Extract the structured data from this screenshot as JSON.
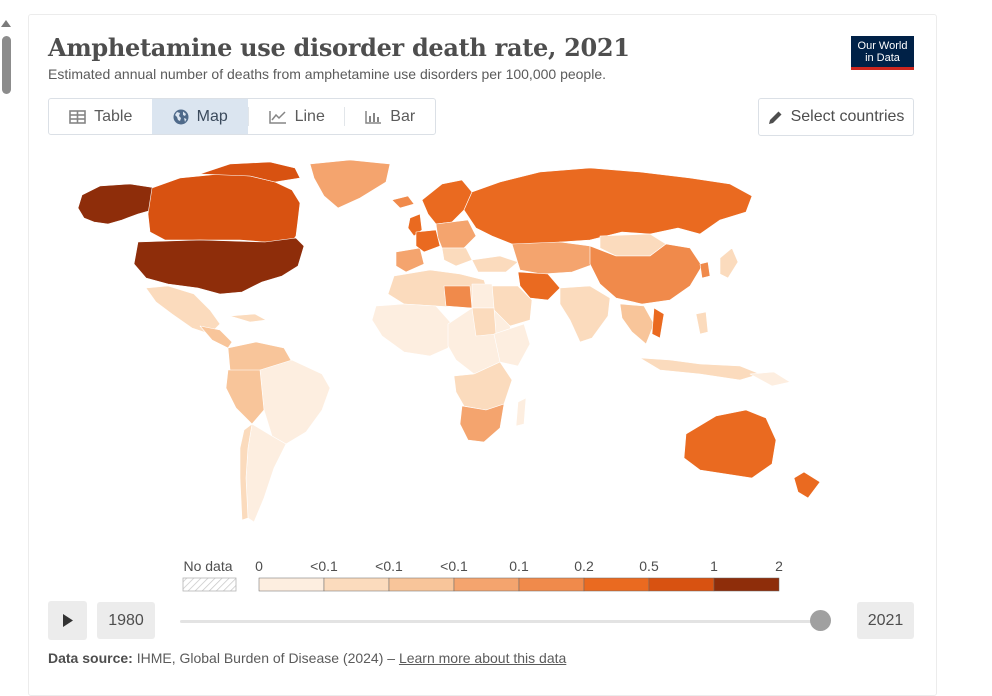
{
  "header": {
    "title": "Amphetamine use disorder death rate, 2021",
    "subtitle": "Estimated annual number of deaths from amphetamine use disorders per 100,000 people.",
    "logo_line1": "Our World",
    "logo_line2": "in Data"
  },
  "tabs": [
    {
      "label": "Table",
      "icon": "table-icon",
      "active": false
    },
    {
      "label": "Map",
      "icon": "globe-icon",
      "active": true
    },
    {
      "label": "Line",
      "icon": "line-chart-icon",
      "active": false
    },
    {
      "label": "Bar",
      "icon": "bar-chart-icon",
      "active": false
    }
  ],
  "select_countries": {
    "label": "Select countries",
    "icon": "pencil-icon"
  },
  "legend": {
    "no_data_label": "No data",
    "tick_labels": [
      "0",
      "<0.1",
      "<0.1",
      "<0.1",
      "0.1",
      "0.2",
      "0.5",
      "1",
      "2"
    ],
    "colors": [
      "#fdeee0",
      "#fbdbbd",
      "#f8c59a",
      "#f4a46e",
      "#f08a4b",
      "#ea6a20",
      "#d85211",
      "#8e2d0a"
    ]
  },
  "timeline": {
    "start_year": "1980",
    "end_year": "2021",
    "position": 1.0
  },
  "source": {
    "label": "Data source:",
    "text": "IHME, Global Burden of Disease (2024) –",
    "link": "Learn more about this data"
  }
}
